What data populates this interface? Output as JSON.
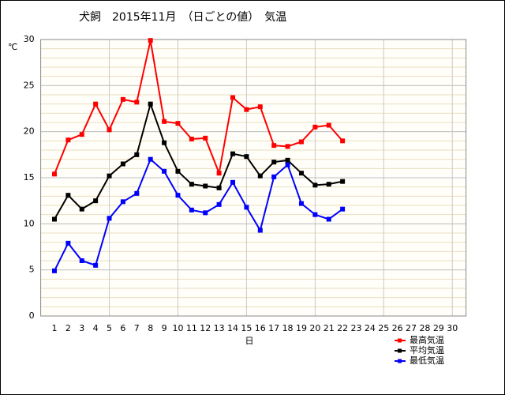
{
  "chart_data": {
    "type": "line",
    "title": "犬飼　2015年11月　（日ごとの値）　気温",
    "y_unit": "℃",
    "x_label": "日",
    "categories": [
      1,
      2,
      3,
      4,
      5,
      6,
      7,
      8,
      9,
      10,
      11,
      12,
      13,
      14,
      15,
      16,
      17,
      18,
      19,
      20,
      21,
      22,
      23,
      24,
      25,
      26,
      27,
      28,
      29,
      30
    ],
    "series": [
      {
        "name": "最高気温",
        "color": "#ff0000",
        "values": [
          15.4,
          19.1,
          19.7,
          23.0,
          20.2,
          23.5,
          23.2,
          29.9,
          21.1,
          20.9,
          19.2,
          19.3,
          15.5,
          23.7,
          22.4,
          22.7,
          18.5,
          18.4,
          18.9,
          20.5,
          20.7,
          19.0,
          null,
          null,
          null,
          null,
          null,
          null,
          null,
          null
        ]
      },
      {
        "name": "平均気温",
        "color": "#000000",
        "values": [
          10.5,
          13.1,
          11.6,
          12.5,
          15.2,
          16.5,
          17.5,
          23.0,
          18.8,
          15.7,
          14.3,
          14.1,
          13.9,
          17.6,
          17.3,
          15.2,
          16.7,
          16.9,
          15.5,
          14.2,
          14.3,
          14.6,
          null,
          null,
          null,
          null,
          null,
          null,
          null,
          null
        ]
      },
      {
        "name": "最低気温",
        "color": "#0000ff",
        "values": [
          4.9,
          7.9,
          6.0,
          5.5,
          10.6,
          12.4,
          13.3,
          17.0,
          15.7,
          13.1,
          11.5,
          11.2,
          12.1,
          14.5,
          11.8,
          9.3,
          15.1,
          16.4,
          12.2,
          11.0,
          10.5,
          11.6,
          null,
          null,
          null,
          null,
          null,
          null,
          null,
          null
        ]
      }
    ],
    "ylim": [
      0,
      30
    ],
    "yticks": [
      0,
      5,
      10,
      15,
      20,
      25,
      30
    ],
    "grid": true,
    "legend": "lower right"
  }
}
